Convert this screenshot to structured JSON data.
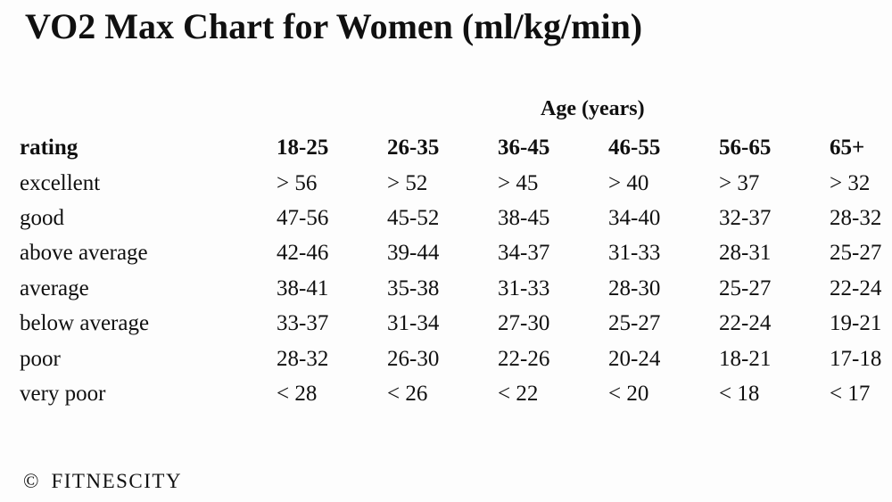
{
  "title": "VO2 Max Chart for Women (ml/kg/min)",
  "chart_data": {
    "type": "table",
    "title": "VO2 Max Chart for Women (ml/kg/min)",
    "unit": "ml/kg/min",
    "column_group_label": "Age (years)",
    "header": {
      "rating_label": "rating",
      "age_columns": [
        "18-25",
        "26-35",
        "36-45",
        "46-55",
        "56-65",
        "65+"
      ]
    },
    "rows": [
      {
        "rating": "excellent",
        "values": [
          "> 56",
          "> 52",
          "> 45",
          "> 40",
          "> 37",
          "> 32"
        ]
      },
      {
        "rating": "good",
        "values": [
          "47-56",
          "45-52",
          "38-45",
          "34-40",
          "32-37",
          "28-32"
        ]
      },
      {
        "rating": "above average",
        "values": [
          "42-46",
          "39-44",
          "34-37",
          "31-33",
          "28-31",
          "25-27"
        ]
      },
      {
        "rating": "average",
        "values": [
          "38-41",
          "35-38",
          "31-33",
          "28-30",
          "25-27",
          "22-24"
        ]
      },
      {
        "rating": "below average",
        "values": [
          "33-37",
          "31-34",
          "27-30",
          "25-27",
          "22-24",
          "19-21"
        ]
      },
      {
        "rating": "poor",
        "values": [
          "28-32",
          "26-30",
          "22-26",
          "20-24",
          "18-21",
          "17-18"
        ]
      },
      {
        "rating": "very poor",
        "values": [
          "< 28",
          "< 26",
          "< 22",
          "< 20",
          "< 18",
          "< 17"
        ]
      }
    ]
  },
  "footer": {
    "copyright_symbol": "©",
    "brand": "FITNESCITY"
  },
  "colors": {
    "background": "#fdfdfd",
    "text": "#101010"
  }
}
